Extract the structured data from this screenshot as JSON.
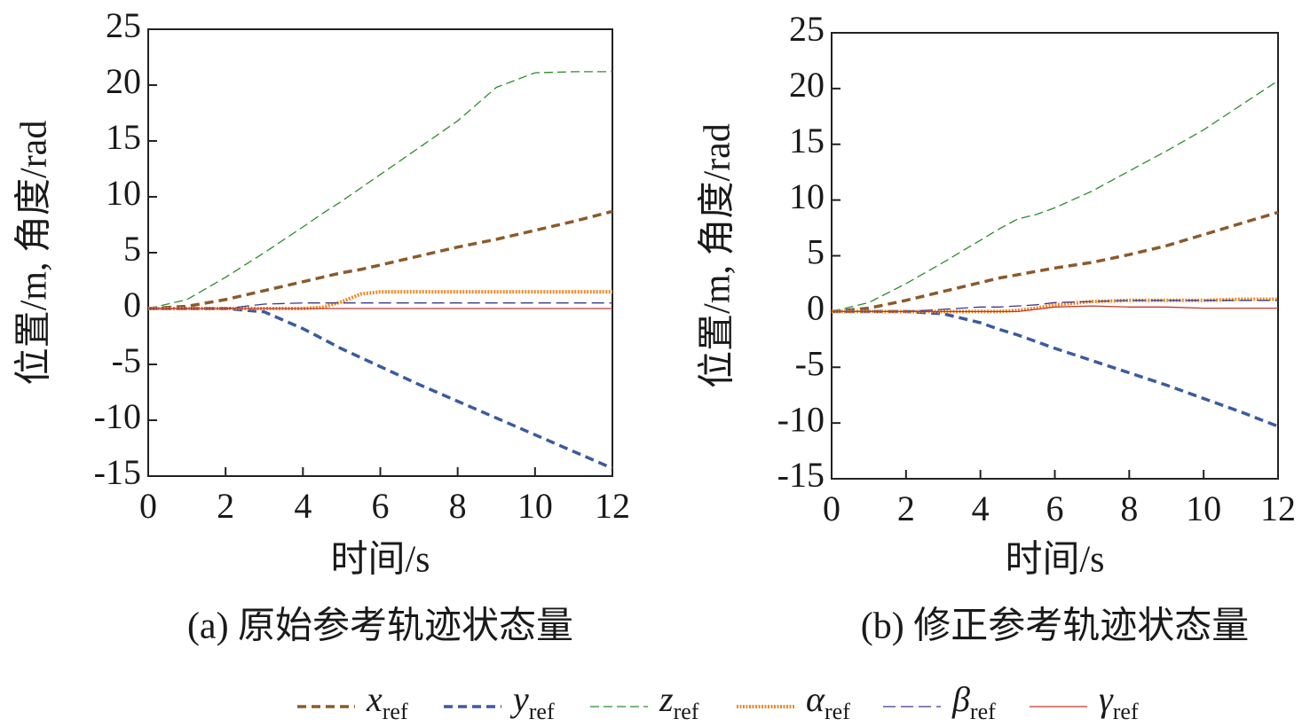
{
  "chart_data": [
    {
      "type": "line",
      "title": "(a) 原始参考轨迹状态量",
      "xlabel": "时间/s",
      "ylabel": "位置/m, 角度/rad",
      "x": [
        0,
        1,
        2,
        3,
        4,
        4.5,
        5,
        5.5,
        6,
        7,
        8,
        9,
        10,
        11,
        12
      ],
      "xlim": [
        0,
        12
      ],
      "xticks": [
        0,
        2,
        4,
        6,
        8,
        10,
        12
      ],
      "ylim": [
        -15,
        25
      ],
      "yticks": [
        -15,
        -10,
        -5,
        0,
        5,
        10,
        15,
        20,
        25
      ],
      "series": [
        {
          "name": "xref",
          "color": "#8b5a2b",
          "values": [
            0,
            0.2,
            0.8,
            1.6,
            2.4,
            2.8,
            3.2,
            3.5,
            3.9,
            4.7,
            5.5,
            6.2,
            7.0,
            7.8,
            8.7
          ]
        },
        {
          "name": "yref",
          "color": "#3a5ba0",
          "values": [
            0,
            0,
            0,
            -0.3,
            -1.8,
            -2.7,
            -3.6,
            -4.4,
            -5.2,
            -6.8,
            -8.3,
            -9.8,
            -11.3,
            -12.8,
            -14.3
          ]
        },
        {
          "name": "zref",
          "color": "#2e8b2e",
          "values": [
            0,
            0.8,
            2.8,
            5.0,
            7.3,
            8.5,
            9.6,
            10.8,
            12.0,
            14.4,
            16.8,
            19.8,
            21.1,
            21.2,
            21.2
          ]
        },
        {
          "name": "αref",
          "color": "#f08a24",
          "values": [
            0,
            0,
            0,
            0,
            0,
            0.1,
            0.6,
            1.3,
            1.5,
            1.5,
            1.5,
            1.5,
            1.5,
            1.5,
            1.5
          ]
        },
        {
          "name": "βref",
          "color": "#3a3a8c",
          "values": [
            0,
            0,
            0,
            0.4,
            0.5,
            0.5,
            0.5,
            0.5,
            0.5,
            0.5,
            0.5,
            0.5,
            0.5,
            0.5,
            0.5
          ]
        },
        {
          "name": "γref",
          "color": "#c0392b",
          "values": [
            0,
            0,
            0,
            0,
            0,
            0,
            0,
            0,
            0,
            0,
            0,
            0,
            0,
            0,
            0
          ]
        }
      ]
    },
    {
      "type": "line",
      "title": "(b) 修正参考轨迹状态量",
      "xlabel": "时间/s",
      "ylabel": "位置/m, 角度/rad",
      "x": [
        0,
        1,
        2,
        3,
        4,
        4.5,
        5,
        5.5,
        6,
        7,
        8,
        9,
        10,
        11,
        12
      ],
      "xlim": [
        0,
        12
      ],
      "xticks": [
        0,
        2,
        4,
        6,
        8,
        10,
        12
      ],
      "ylim": [
        -15,
        25
      ],
      "yticks": [
        -15,
        -10,
        -5,
        0,
        5,
        10,
        15,
        20,
        25
      ],
      "series": [
        {
          "color": "#8b5a2b",
          "values": [
            0,
            0.3,
            1.0,
            1.8,
            2.6,
            3.0,
            3.3,
            3.6,
            3.9,
            4.4,
            5.1,
            5.9,
            6.9,
            7.9,
            8.9
          ]
        },
        {
          "color": "#3a5ba0",
          "values": [
            0,
            0,
            0,
            -0.2,
            -1.0,
            -1.6,
            -2.1,
            -2.7,
            -3.3,
            -4.4,
            -5.5,
            -6.6,
            -7.8,
            -9.0,
            -10.3
          ]
        },
        {
          "color": "#2e8b2e",
          "values": [
            0,
            0.8,
            2.5,
            4.4,
            6.4,
            7.4,
            8.3,
            8.7,
            9.3,
            10.8,
            12.6,
            14.4,
            16.3,
            18.5,
            20.7
          ]
        },
        {
          "color": "#f08a24",
          "values": [
            0,
            0,
            0,
            0,
            0,
            0,
            0.1,
            0.3,
            0.6,
            0.9,
            1.0,
            1.0,
            1.0,
            1.1,
            1.1
          ]
        },
        {
          "color": "#3a3a8c",
          "values": [
            0,
            0,
            0,
            0.2,
            0.4,
            0.4,
            0.5,
            0.6,
            0.8,
            0.9,
            1.0,
            1.0,
            1.0,
            1.0,
            1.0
          ]
        },
        {
          "color": "#c0392b",
          "values": [
            0,
            0,
            0,
            0,
            0,
            0,
            0,
            0.2,
            0.4,
            0.5,
            0.4,
            0.4,
            0.3,
            0.3,
            0.3
          ]
        }
      ]
    }
  ]
}
